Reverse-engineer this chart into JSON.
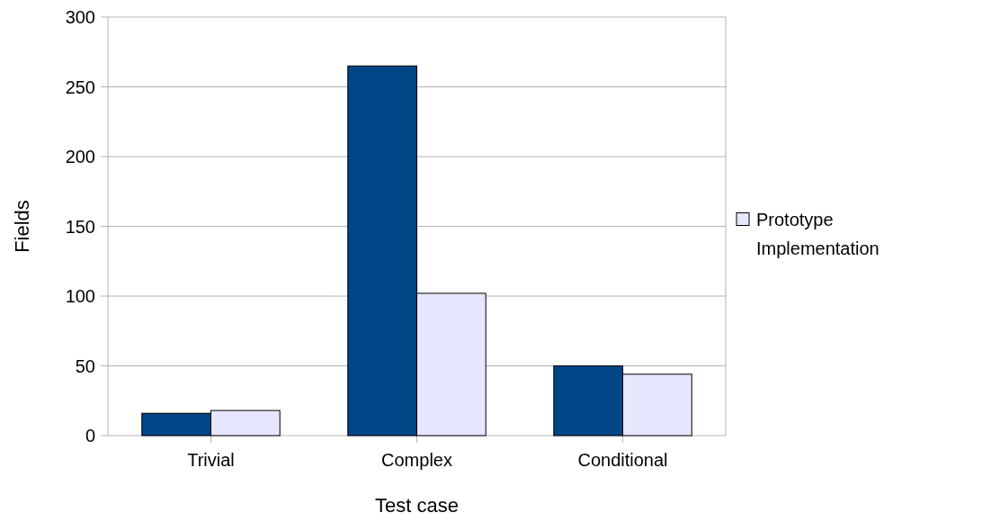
{
  "chart_data": {
    "type": "bar",
    "xlabel": "Test case",
    "ylabel": "Fields",
    "categories": [
      "Trivial",
      "Complex",
      "Conditional"
    ],
    "series": [
      {
        "color": "#004586",
        "values": [
          16,
          265,
          50
        ]
      },
      {
        "name": "Prototype Implementation",
        "color": "#e6e6ff",
        "values": [
          18,
          102,
          44
        ]
      }
    ],
    "ylim": [
      0,
      300
    ],
    "yticks": [
      0,
      50,
      100,
      150,
      200,
      250,
      300
    ],
    "grid": "y",
    "legend": "right"
  }
}
